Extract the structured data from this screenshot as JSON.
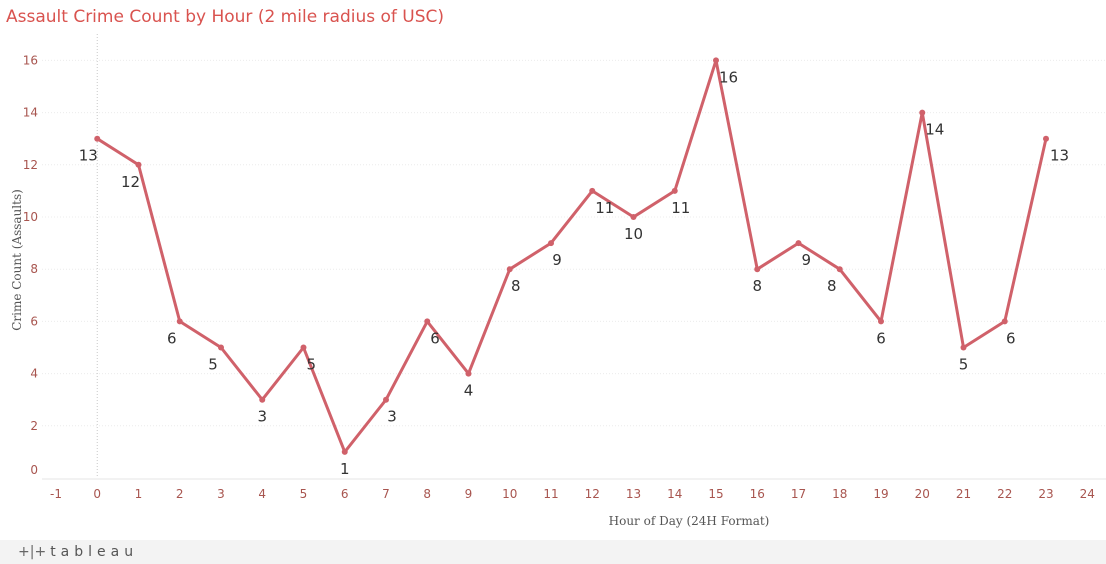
{
  "chart_data": {
    "type": "line",
    "title": "Assault Crime Count by Hour (2 mile radius of USC)",
    "xlabel": "Hour of Day (24H Format)",
    "ylabel": "Crime Count (Assaults)",
    "x": [
      0,
      1,
      2,
      3,
      4,
      5,
      6,
      7,
      8,
      9,
      10,
      11,
      12,
      13,
      14,
      15,
      16,
      17,
      18,
      19,
      20,
      21,
      22,
      23
    ],
    "values": [
      13,
      12,
      6,
      5,
      3,
      5,
      1,
      3,
      6,
      4,
      8,
      9,
      11,
      10,
      11,
      16,
      8,
      9,
      8,
      6,
      14,
      5,
      6,
      13
    ],
    "xlim": [
      -1,
      24
    ],
    "ylim": [
      0,
      16
    ],
    "x_ticks": [
      -1,
      0,
      1,
      2,
      3,
      4,
      5,
      6,
      7,
      8,
      9,
      10,
      11,
      12,
      13,
      14,
      15,
      16,
      17,
      18,
      19,
      20,
      21,
      22,
      23,
      24
    ],
    "y_ticks": [
      0,
      2,
      4,
      6,
      8,
      10,
      12,
      14,
      16
    ],
    "grid": true,
    "line_color": "#d0616a"
  },
  "footer": {
    "logo_text": "tableau"
  }
}
